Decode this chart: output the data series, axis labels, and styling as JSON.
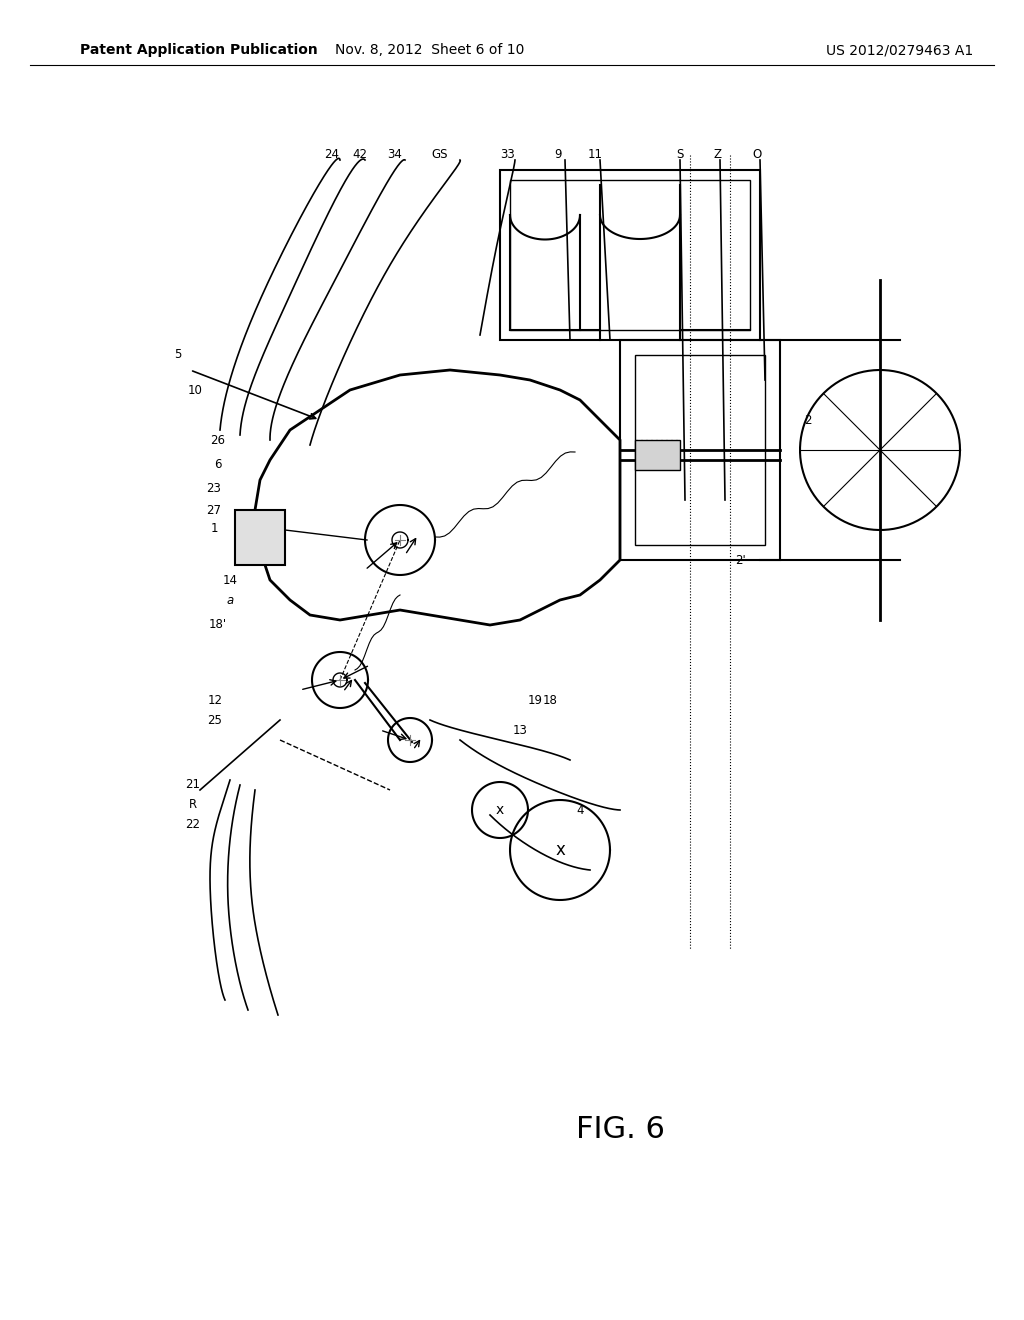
{
  "bg_color": "#ffffff",
  "header_left": "Patent Application Publication",
  "header_mid": "Nov. 8, 2012  Sheet 6 of 10",
  "header_right": "US 2012/0279463 A1",
  "fig_label": "FIG. 6",
  "title_fontsize": 10,
  "fig_label_fontsize": 22
}
